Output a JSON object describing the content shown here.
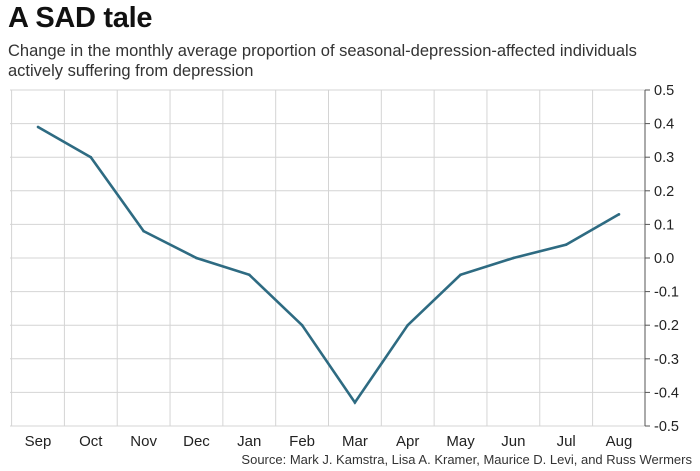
{
  "header": {
    "title": "A SAD tale",
    "subtitle": "Change in the monthly average proportion of seasonal-depression-affected individuals actively suffering from depression"
  },
  "footer": {
    "source": "Source: Mark J. Kamstra, Lisa A. Kramer, Maurice D. Levi, and Russ Wermers"
  },
  "colors": {
    "line": "#2e6b82",
    "grid": "#d4d4d4",
    "axis": "#555555"
  },
  "chart_data": {
    "type": "line",
    "title": "A SAD tale",
    "subtitle": "Change in the monthly average proportion of seasonal-depression-affected individuals actively suffering from depression",
    "xlabel": "",
    "ylabel": "",
    "categories": [
      "Sep",
      "Oct",
      "Nov",
      "Dec",
      "Jan",
      "Feb",
      "Mar",
      "Apr",
      "May",
      "Jun",
      "Jul",
      "Aug"
    ],
    "series": [
      {
        "values": [
          0.39,
          0.3,
          0.08,
          0.0,
          -0.05,
          -0.2,
          -0.43,
          -0.2,
          -0.05,
          0.0,
          0.04,
          0.13
        ]
      }
    ],
    "ylim": [
      -0.5,
      0.5
    ],
    "yticks": [
      "0.5",
      "0.4",
      "0.3",
      "0.2",
      "0.1",
      "0.0",
      "-0.1",
      "-0.2",
      "-0.3",
      "-0.4",
      "-0.5"
    ],
    "ytick_values": [
      0.5,
      0.4,
      0.3,
      0.2,
      0.1,
      0.0,
      -0.1,
      -0.2,
      -0.3,
      -0.4,
      -0.5
    ],
    "y_axis_side": "right",
    "grid": true,
    "legend": "none"
  }
}
